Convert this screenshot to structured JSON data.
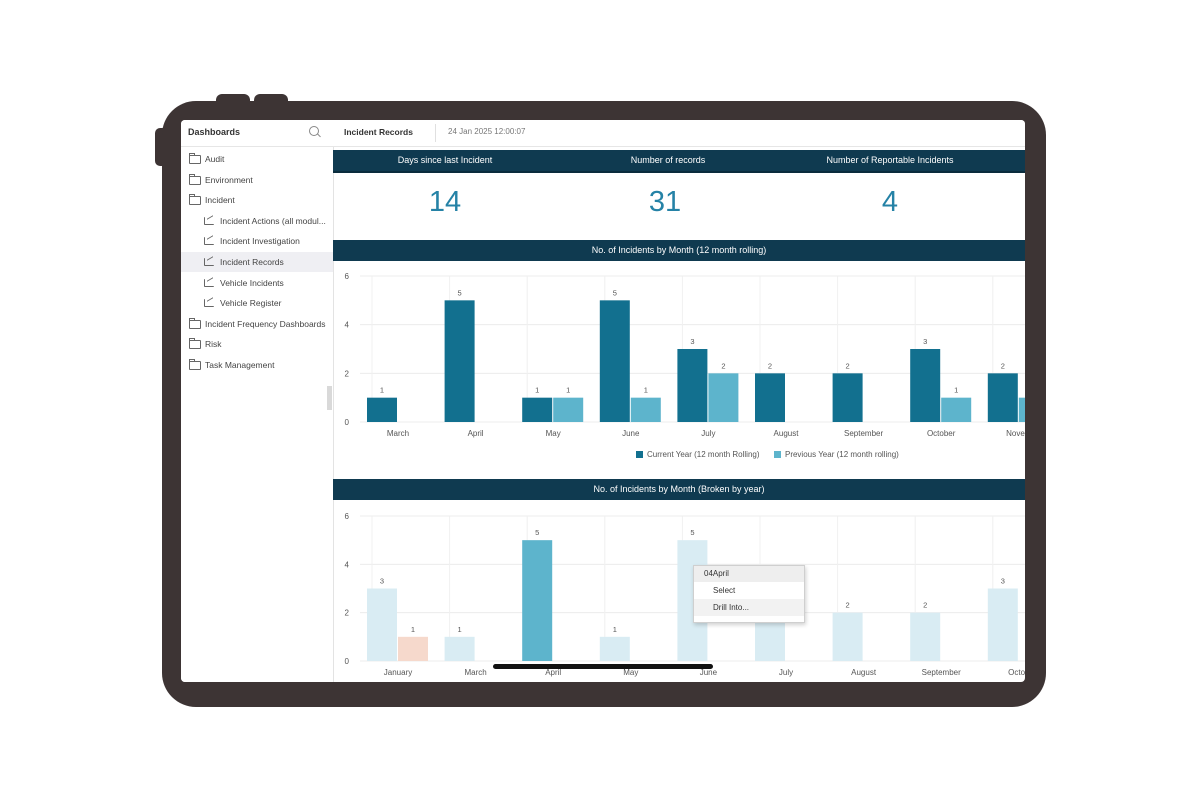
{
  "sidebar": {
    "title": "Dashboards",
    "items": [
      {
        "label": "Audit",
        "type": "folder",
        "level": 0,
        "active": false
      },
      {
        "label": "Environment",
        "type": "folder",
        "level": 0,
        "active": false
      },
      {
        "label": "Incident",
        "type": "folder-open",
        "level": 0,
        "active": false
      },
      {
        "label": "Incident Actions (all modul...",
        "type": "dashboard",
        "level": 1,
        "active": false
      },
      {
        "label": "Incident Investigation",
        "type": "dashboard",
        "level": 1,
        "active": false
      },
      {
        "label": "Incident Records",
        "type": "dashboard",
        "level": 1,
        "active": true
      },
      {
        "label": "Vehicle Incidents",
        "type": "dashboard",
        "level": 1,
        "active": false
      },
      {
        "label": "Vehicle Register",
        "type": "dashboard",
        "level": 1,
        "active": false
      },
      {
        "label": "Incident Frequency Dashboards",
        "type": "folder",
        "level": 0,
        "active": false
      },
      {
        "label": "Risk",
        "type": "folder",
        "level": 0,
        "active": false
      },
      {
        "label": "Task Management",
        "type": "folder",
        "level": 0,
        "active": false
      }
    ]
  },
  "header": {
    "title": "Incident Records",
    "date": "24 Jan 2025 12:00:07"
  },
  "kpis": [
    {
      "label": "Days since last Incident",
      "value": "14"
    },
    {
      "label": "Number of records",
      "value": "31"
    },
    {
      "label": "Number of Reportable Incidents",
      "value": "4"
    }
  ],
  "colors": {
    "dark_bar": "#0f3a50",
    "current_year": "#12708f",
    "previous_year": "#5db4cc",
    "highlight": "#5db4cc",
    "faded": "#d9ecf3",
    "faded_prev": "#f6d9cc",
    "frame": "#3d3434"
  },
  "chart_data": [
    {
      "type": "bar",
      "title": "No. of Incidents by Month (12 month rolling)",
      "categories": [
        "March",
        "April",
        "May",
        "June",
        "July",
        "August",
        "September",
        "October",
        "Novem"
      ],
      "series": [
        {
          "name": "Current Year (12 month Rolling)",
          "values": [
            1,
            5,
            1,
            5,
            3,
            2,
            2,
            3,
            2
          ]
        },
        {
          "name": "Previous Year (12 month rolling)",
          "values": [
            null,
            null,
            1,
            1,
            2,
            null,
            null,
            1,
            1
          ]
        }
      ],
      "ylim": [
        0,
        6
      ],
      "yticks": [
        0,
        2,
        4,
        6
      ],
      "grid": true,
      "legend": "bottom"
    },
    {
      "type": "bar",
      "title": "No. of Incidents by Month (Broken by year)",
      "categories": [
        "January",
        "March",
        "April",
        "May",
        "June",
        "July",
        "August",
        "September",
        "Octob"
      ],
      "series": [
        {
          "values": [
            3,
            1,
            5,
            1,
            5,
            3,
            2,
            2,
            3
          ]
        },
        {
          "values": [
            1,
            null,
            null,
            null,
            null,
            null,
            null,
            null,
            null
          ]
        }
      ],
      "highlighted_category": "April",
      "ylim": [
        0,
        6
      ],
      "yticks": [
        0,
        2,
        4,
        6
      ],
      "grid": true
    }
  ],
  "context_menu": {
    "header": "04April",
    "items": [
      "Select",
      "Drill Into..."
    ]
  }
}
